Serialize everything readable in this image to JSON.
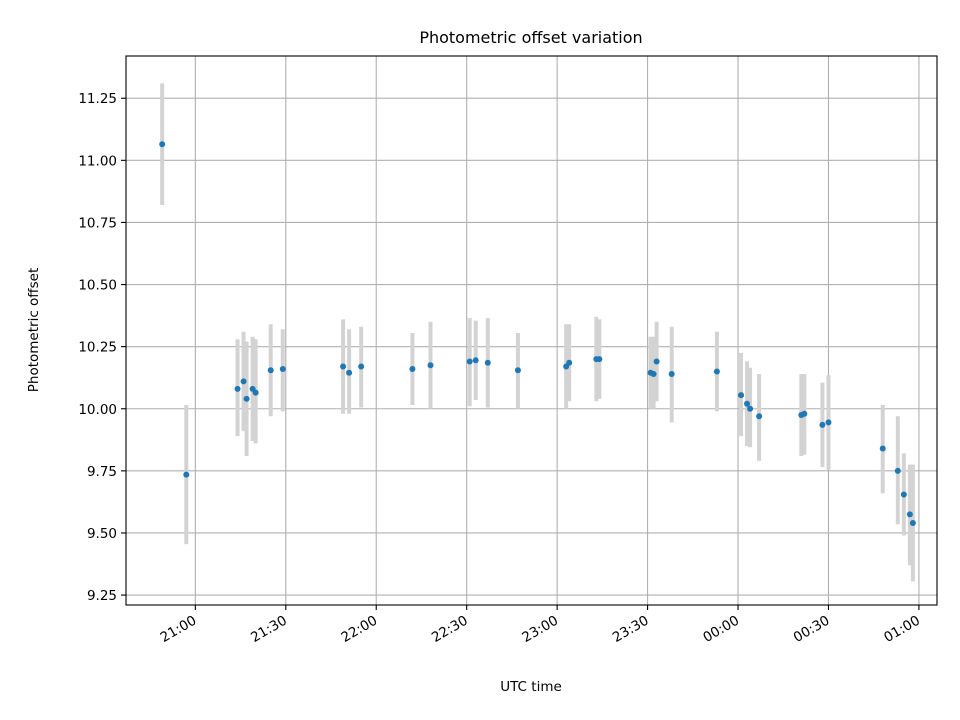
{
  "chart_data": {
    "type": "scatter",
    "title": "Photometric offset variation",
    "xlabel": "UTC time",
    "ylabel": "Photometric offset",
    "grid": true,
    "x_range": [
      "20:37",
      "01:06"
    ],
    "ylim": [
      9.21,
      11.42
    ],
    "x_ticks": [
      "21:00",
      "21:30",
      "22:00",
      "22:30",
      "23:00",
      "23:30",
      "00:00",
      "00:30",
      "01:00"
    ],
    "y_ticks": [
      "9.25",
      "9.50",
      "9.75",
      "10.00",
      "10.25",
      "10.50",
      "10.75",
      "11.00",
      "11.25"
    ],
    "colors": {
      "points": "#1f77b4",
      "error_bars": "#d3d3d3",
      "grid": "#b0b0b0"
    },
    "points": [
      {
        "t": "20:49",
        "y": 11.065,
        "lo": 10.82,
        "hi": 11.31
      },
      {
        "t": "20:57",
        "y": 9.735,
        "lo": 9.455,
        "hi": 10.015
      },
      {
        "t": "21:14",
        "y": 10.08,
        "lo": 9.89,
        "hi": 10.28
      },
      {
        "t": "21:16",
        "y": 10.11,
        "lo": 9.91,
        "hi": 10.31
      },
      {
        "t": "21:17",
        "y": 10.04,
        "lo": 9.81,
        "hi": 10.27
      },
      {
        "t": "21:19",
        "y": 10.08,
        "lo": 9.87,
        "hi": 10.29
      },
      {
        "t": "21:20",
        "y": 10.065,
        "lo": 9.86,
        "hi": 10.28
      },
      {
        "t": "21:25",
        "y": 10.155,
        "lo": 9.97,
        "hi": 10.34
      },
      {
        "t": "21:29",
        "y": 10.16,
        "lo": 9.99,
        "hi": 10.32
      },
      {
        "t": "21:49",
        "y": 10.17,
        "lo": 9.98,
        "hi": 10.36
      },
      {
        "t": "21:51",
        "y": 10.145,
        "lo": 9.98,
        "hi": 10.32
      },
      {
        "t": "21:55",
        "y": 10.17,
        "lo": 10.005,
        "hi": 10.33
      },
      {
        "t": "22:12",
        "y": 10.16,
        "lo": 10.015,
        "hi": 10.305
      },
      {
        "t": "22:18",
        "y": 10.175,
        "lo": 10.0,
        "hi": 10.35
      },
      {
        "t": "22:31",
        "y": 10.19,
        "lo": 10.01,
        "hi": 10.365
      },
      {
        "t": "22:33",
        "y": 10.195,
        "lo": 10.035,
        "hi": 10.355
      },
      {
        "t": "22:37",
        "y": 10.185,
        "lo": 10.005,
        "hi": 10.365
      },
      {
        "t": "22:47",
        "y": 10.155,
        "lo": 10.0,
        "hi": 10.305
      },
      {
        "t": "23:03",
        "y": 10.17,
        "lo": 10.0,
        "hi": 10.34
      },
      {
        "t": "23:04",
        "y": 10.185,
        "lo": 10.03,
        "hi": 10.34
      },
      {
        "t": "23:13",
        "y": 10.2,
        "lo": 10.03,
        "hi": 10.37
      },
      {
        "t": "23:14",
        "y": 10.2,
        "lo": 10.04,
        "hi": 10.36
      },
      {
        "t": "23:31",
        "y": 10.145,
        "lo": 10.0,
        "hi": 10.29
      },
      {
        "t": "23:32",
        "y": 10.14,
        "lo": 10.0,
        "hi": 10.29
      },
      {
        "t": "23:33",
        "y": 10.19,
        "lo": 10.03,
        "hi": 10.35
      },
      {
        "t": "23:38",
        "y": 10.14,
        "lo": 9.945,
        "hi": 10.33
      },
      {
        "t": "23:53",
        "y": 10.15,
        "lo": 9.99,
        "hi": 10.31
      },
      {
        "t": "00:01",
        "y": 10.055,
        "lo": 9.89,
        "hi": 10.225
      },
      {
        "t": "00:03",
        "y": 10.02,
        "lo": 9.85,
        "hi": 10.19
      },
      {
        "t": "00:04",
        "y": 10.0,
        "lo": 9.845,
        "hi": 10.165
      },
      {
        "t": "00:07",
        "y": 9.97,
        "lo": 9.79,
        "hi": 10.14
      },
      {
        "t": "00:21",
        "y": 9.975,
        "lo": 9.81,
        "hi": 10.14
      },
      {
        "t": "00:22",
        "y": 9.98,
        "lo": 9.815,
        "hi": 10.14
      },
      {
        "t": "00:28",
        "y": 9.935,
        "lo": 9.765,
        "hi": 10.105
      },
      {
        "t": "00:30",
        "y": 9.945,
        "lo": 9.755,
        "hi": 10.135
      },
      {
        "t": "00:48",
        "y": 9.84,
        "lo": 9.66,
        "hi": 10.015
      },
      {
        "t": "00:53",
        "y": 9.75,
        "lo": 9.535,
        "hi": 9.97
      },
      {
        "t": "00:55",
        "y": 9.655,
        "lo": 9.49,
        "hi": 9.82
      },
      {
        "t": "00:57",
        "y": 9.575,
        "lo": 9.37,
        "hi": 9.775
      },
      {
        "t": "00:58",
        "y": 9.54,
        "lo": 9.305,
        "hi": 9.775
      }
    ]
  }
}
